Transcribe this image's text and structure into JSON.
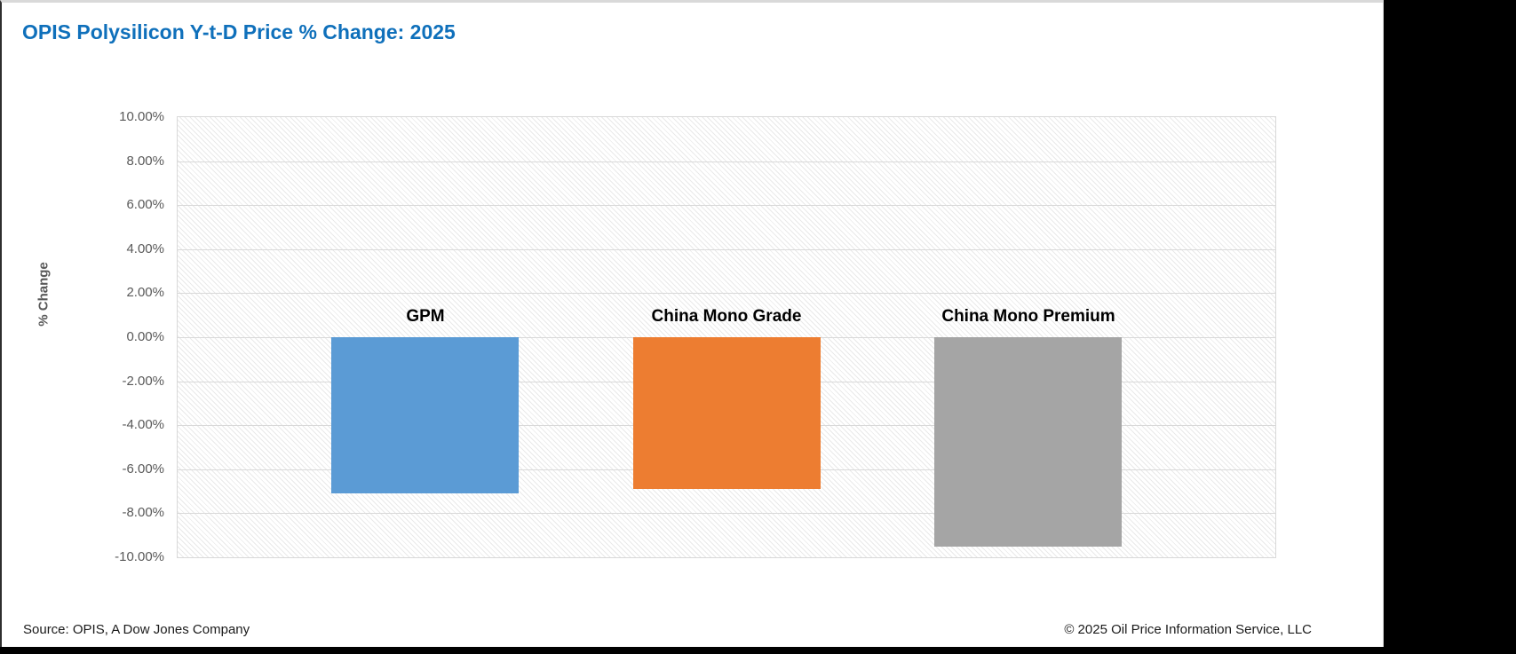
{
  "title": "OPIS Polysilicon Y-t-D Price % Change: 2025",
  "footer": {
    "source": "Source: OPIS, A Dow Jones Company",
    "copyright": "© 2025 Oil Price Information Service, LLC"
  },
  "colors": {
    "title_blue": "#0F70BB",
    "axis_text_gray": "#595959",
    "gridline_gray": "#D9D9D9",
    "panel_background": "#FFFFFF",
    "outer_background": "#000000",
    "bar_gpm": "#5B9BD5",
    "bar_china_mono_grade": "#ED7D31",
    "bar_china_mono_premium": "#A5A5A5"
  },
  "chart_data": {
    "type": "bar",
    "title": "OPIS Polysilicon Y-t-D Price % Change: 2025",
    "categories": [
      "GPM",
      "China Mono Grade",
      "China Mono Premium"
    ],
    "values": [
      -7.1,
      -6.9,
      -9.5
    ],
    "bar_colors": [
      "#5B9BD5",
      "#ED7D31",
      "#A5A5A5"
    ],
    "xlabel": "",
    "ylabel": "% Change",
    "ylim": [
      -10,
      10
    ],
    "ytick_step": 2,
    "ytick_labels": [
      "10.00%",
      "8.00%",
      "6.00%",
      "4.00%",
      "2.00%",
      "0.00%",
      "-2.00%",
      "-4.00%",
      "-6.00%",
      "-8.00%",
      "-10.00%"
    ],
    "grid": true,
    "legend_position": "none",
    "category_labels_position": "above-zero-line",
    "plot_background": "light-diagonal-hatch"
  }
}
